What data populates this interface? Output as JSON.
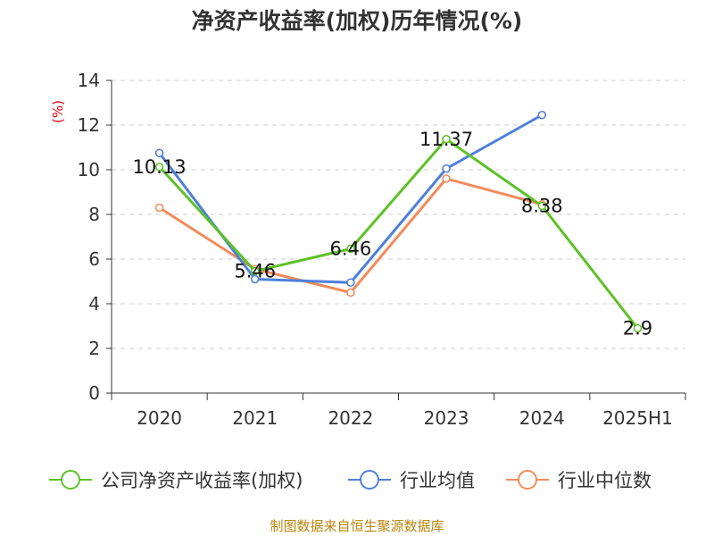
{
  "chart_data": {
    "type": "line",
    "title": "净资产收益率(加权)历年情况(%)",
    "ylabel": "(%)",
    "xlabel": "",
    "categories": [
      "2020",
      "2021",
      "2022",
      "2023",
      "2024",
      "2025H1"
    ],
    "ylim": [
      0,
      14
    ],
    "yticks": [
      0,
      2,
      4,
      6,
      8,
      10,
      12,
      14
    ],
    "grid": true,
    "legend_position": "bottom",
    "series": [
      {
        "name": "公司净资产收益率(加权)",
        "color": "#5dc127",
        "values": [
          10.13,
          5.46,
          6.46,
          11.37,
          8.38,
          2.9
        ],
        "labels": [
          "10.13",
          "5.46",
          "6.46",
          "11.37",
          "8.38",
          "2.9"
        ]
      },
      {
        "name": "行业均值",
        "color": "#4e7fdb",
        "values": [
          10.75,
          5.1,
          4.95,
          10.05,
          12.45,
          null
        ]
      },
      {
        "name": "行业中位数",
        "color": "#f48b5a",
        "values": [
          8.3,
          5.55,
          4.5,
          9.6,
          8.45,
          null
        ]
      }
    ]
  },
  "footer": {
    "source": "制图数据来自恒生聚源数据库"
  },
  "colors": {
    "axis": "#333333",
    "grid": "#cccccc",
    "ylabel": "#e60012",
    "source": "#b8860b"
  }
}
